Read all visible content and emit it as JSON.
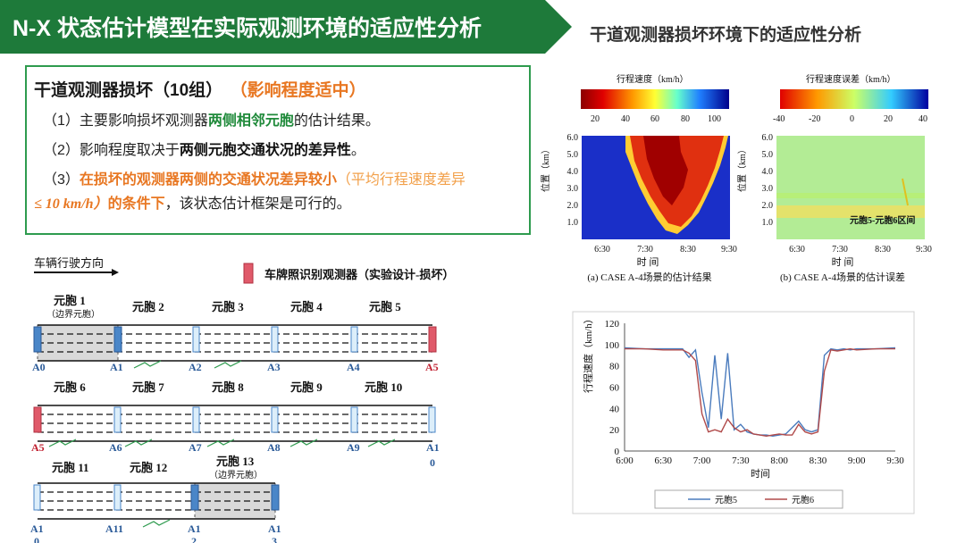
{
  "header": {
    "title": "N-X 状态估计模型在实际观测环境的适应性分析",
    "subtitle": "干道观测器损坏环境下的适应性分析",
    "title_bg": "#1e7a3a"
  },
  "info": {
    "heading": "干道观测器损坏（10组）",
    "impact": "（影响程度适中）",
    "line1": {
      "pre": "（1）主要影响损坏观测器",
      "hl": "两侧相邻元胞",
      "post": "的估计结果。"
    },
    "line2": {
      "pre": "（2）影响程度取决于",
      "hl": "两侧元胞交通状况的差异性",
      "post": "。"
    },
    "line3": {
      "pre": "（3）",
      "hl": "在损坏的观测器两侧的交通状况差异较小",
      "paren": "（平均行程速度差异"
    },
    "line4": {
      "math": "≤ 10 km/h）",
      "hl": "的条件下",
      "post": "，该状态估计框架是可行的。"
    }
  },
  "diagram": {
    "direction_label": "车辆行驶方向",
    "legend_label": "车牌照识别观测器（实验设计-损坏）",
    "row1": {
      "cells": [
        "元胞 1",
        "元胞 2",
        "元胞 3",
        "元胞 4",
        "元胞 5"
      ],
      "boundary_note": "（边界元胞）",
      "detectors": [
        "A0",
        "A1",
        "A2",
        "A3",
        "A4",
        "A5"
      ]
    },
    "row2": {
      "cells": [
        "元胞 6",
        "元胞 7",
        "元胞 8",
        "元胞 9",
        "元胞 10"
      ],
      "detectors": [
        "A5",
        "A6",
        "A7",
        "A8",
        "A9",
        "A1"
      ],
      "last_sub": "0"
    },
    "row3": {
      "cells": [
        "元胞 11",
        "元胞 12",
        "元胞 13"
      ],
      "boundary_note": "（边界元胞）",
      "detectors": [
        "A1",
        "A11",
        "A1",
        "A1"
      ],
      "subs": [
        "0",
        "2",
        "3"
      ]
    }
  },
  "heatmap_a": {
    "colorbar_title": "行程速度（km/h）",
    "colorbar_ticks": [
      "20",
      "40",
      "60",
      "80",
      "100"
    ],
    "y_label": "位置（km）",
    "y_ticks": [
      "6.0",
      "5.0",
      "4.0",
      "3.0",
      "2.0",
      "1.0"
    ],
    "x_ticks": [
      "6:30",
      "7:30",
      "8:30",
      "9:30"
    ],
    "x_label": "时 间",
    "caption": "(a) CASE A-4场景的估计结果"
  },
  "heatmap_b": {
    "colorbar_title": "行程速度误差（km/h）",
    "colorbar_ticks": [
      "-40",
      "-20",
      "0",
      "20",
      "40"
    ],
    "y_label": "位置（km）",
    "y_ticks": [
      "6.0",
      "5.0",
      "4.0",
      "3.0",
      "2.0",
      "1.0"
    ],
    "x_ticks": [
      "6:30",
      "7:30",
      "8:30",
      "9:30"
    ],
    "x_label": "时 间",
    "annotation": "元胞5-元胞6区间",
    "caption": "(b) CASE A-4场景的估计误差"
  },
  "chart_data": {
    "type": "line",
    "xlabel": "时间",
    "ylabel": "行程速度（km/h）",
    "ylim": [
      0,
      120
    ],
    "x_ticks": [
      "6:00",
      "6:30",
      "7:00",
      "7:30",
      "8:00",
      "8:30",
      "9:00",
      "9:30"
    ],
    "y_ticks": [
      0,
      20,
      40,
      60,
      80,
      100,
      120
    ],
    "x": [
      "6:00",
      "6:15",
      "6:30",
      "6:45",
      "6:50",
      "6:55",
      "7:00",
      "7:05",
      "7:10",
      "7:15",
      "7:20",
      "7:25",
      "7:30",
      "7:35",
      "7:40",
      "7:45",
      "7:50",
      "7:55",
      "8:00",
      "8:05",
      "8:10",
      "8:15",
      "8:20",
      "8:25",
      "8:30",
      "8:35",
      "8:40",
      "8:45",
      "8:50",
      "8:55",
      "9:00",
      "9:15",
      "9:30"
    ],
    "series": [
      {
        "name": "元胞5",
        "color": "#4a7bbd",
        "values": [
          97,
          96,
          96,
          96,
          88,
          95,
          55,
          22,
          90,
          30,
          92,
          20,
          25,
          18,
          16,
          15,
          15,
          14,
          15,
          16,
          22,
          28,
          20,
          18,
          20,
          90,
          96,
          95,
          96,
          95,
          96,
          96,
          97
        ]
      },
      {
        "name": "元胞6",
        "color": "#b04a4a",
        "values": [
          96,
          96,
          95,
          95,
          92,
          85,
          35,
          18,
          20,
          18,
          30,
          22,
          18,
          20,
          16,
          15,
          14,
          15,
          16,
          15,
          15,
          25,
          18,
          16,
          18,
          75,
          95,
          94,
          95,
          96,
          95,
          96,
          96
        ]
      }
    ],
    "legend_position": "bottom",
    "grid": false
  }
}
